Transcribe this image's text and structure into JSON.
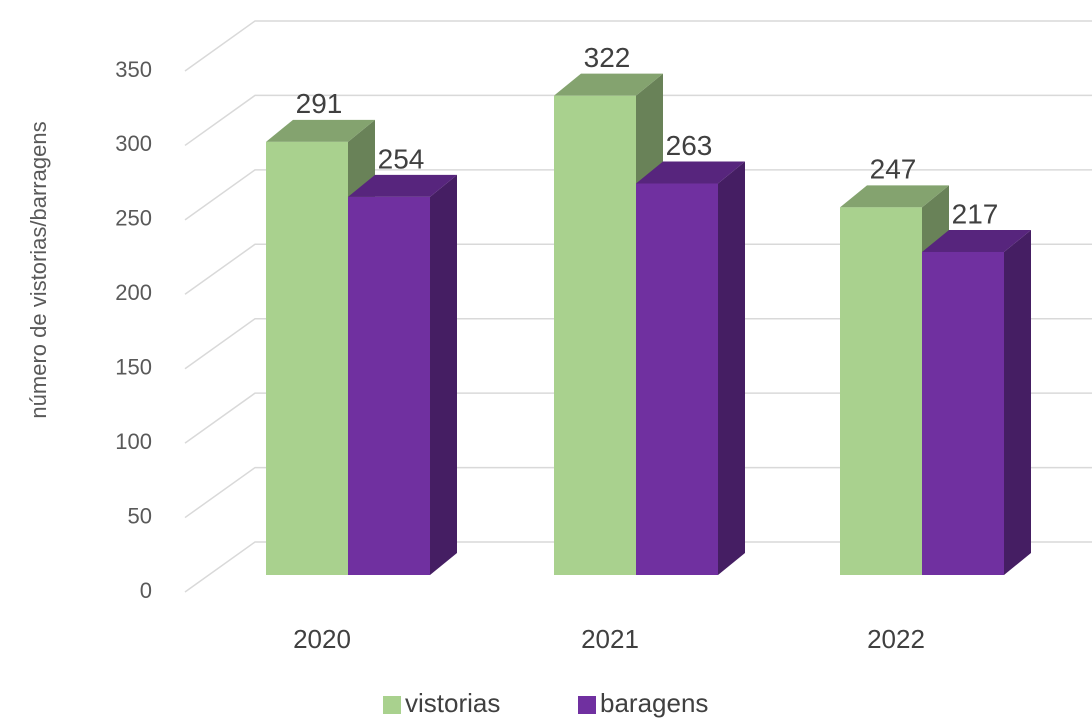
{
  "chart_data": {
    "type": "bar3d",
    "y_axis_label": "número de vistorias/barragens",
    "categories": [
      "2020",
      "2021",
      "2022"
    ],
    "series": [
      {
        "name": "vistorias",
        "color": "#a9d18e",
        "values": [
          291,
          322,
          247
        ]
      },
      {
        "name": "baragens",
        "color": "#7030a0",
        "values": [
          254,
          263,
          217
        ]
      }
    ],
    "ylim": [
      0,
      350
    ],
    "yticks": [
      0,
      50,
      100,
      150,
      200,
      250,
      300,
      350
    ],
    "grid": true,
    "legend": "bottom"
  }
}
